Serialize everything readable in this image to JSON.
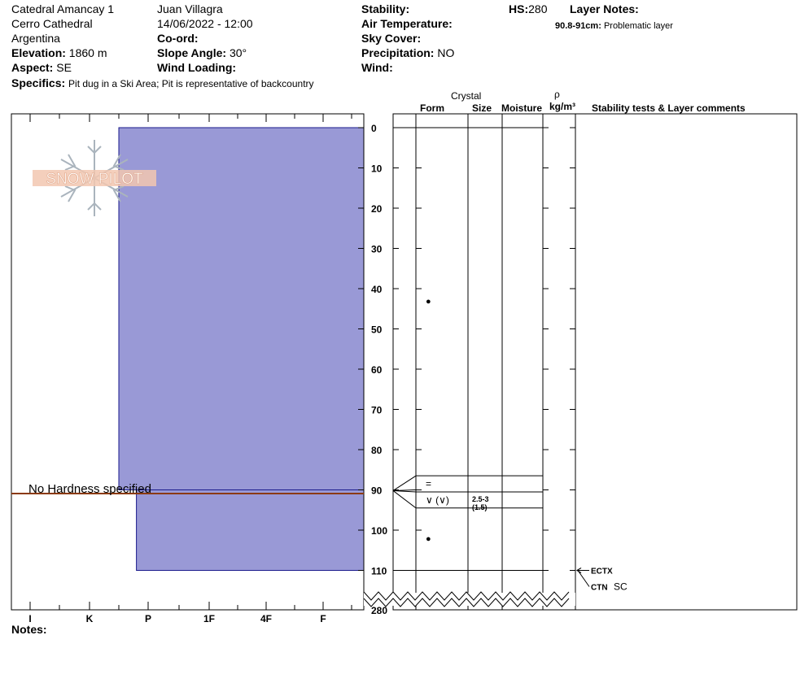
{
  "header": {
    "location": "Catedral Amancay 1",
    "region": "Cerro Cathedral",
    "country": "Argentina",
    "elevation_label": "Elevation:",
    "elevation_value": "1860 m",
    "aspect_label": "Aspect:",
    "aspect_value": "SE",
    "observer": "Juan Villagra",
    "datetime": "14/06/2022 - 12:00",
    "coord_label": "Co-ord:",
    "slope_label": "Slope Angle:",
    "slope_value": "30°",
    "wind_loading_label": "Wind Loading:",
    "stability_label": "Stability:",
    "air_temp_label": "Air Temperature:",
    "sky_label": "Sky Cover:",
    "precip_label": "Precipitation:",
    "precip_value": "NO",
    "wind_label": "Wind:",
    "hs_label": "HS:",
    "hs_value": "280",
    "layer_notes_label": "Layer Notes:",
    "layer_note_range": "90.8-91cm:",
    "layer_note_text": "Problematic layer",
    "specifics_label": "Specifics:",
    "specifics_value": "Pit dug in a Ski Area; Pit is representative of backcountry",
    "notes_label": "Notes:"
  },
  "logo": {
    "text": "SNOW PILOT"
  },
  "columns": {
    "crystal": "Crystal",
    "form": "Form",
    "size": "Size",
    "moisture": "Moisture",
    "rho": "ρ",
    "density_unit": "kg/m³",
    "stability_comments": "Stability tests & Layer comments"
  },
  "colors": {
    "layer_fill": "#9999d6",
    "problem_line": "#8b3a0e"
  },
  "chart_data": {
    "type": "snow-profile",
    "no_hardness_text": "No Hardness specified",
    "hardness_scale": [
      "I",
      "K",
      "P",
      "1F",
      "4F",
      "F"
    ],
    "depth_ticks": [
      0,
      10,
      20,
      30,
      40,
      50,
      60,
      70,
      80,
      90,
      100,
      110
    ],
    "depth_bottom_label": "280",
    "depth_range": [
      0,
      110
    ],
    "layers": [
      {
        "top": 0,
        "bottom": 90,
        "hardness_index": 1.5
      },
      {
        "top": 90,
        "bottom": 110,
        "hardness_index": 1.8
      }
    ],
    "problem_layer_depth": 91,
    "layer_boundaries": [
      0,
      86.5,
      90.5,
      94.5,
      110
    ],
    "grain_rows": [
      {
        "depth": 43,
        "symbol": "●",
        "size": ""
      },
      {
        "depth": 88.5,
        "symbol": "=",
        "size": ""
      },
      {
        "depth": 92.5,
        "symbol": "∨ (∨)",
        "size": "2.5-3",
        "size2": "(1.5)"
      },
      {
        "depth": 102,
        "symbol": "●",
        "size": ""
      }
    ],
    "stability_tests": [
      {
        "depth": 110,
        "label": "ECTX",
        "result": ""
      },
      {
        "depth": 110,
        "label": "CTN",
        "result": "SC"
      }
    ]
  }
}
